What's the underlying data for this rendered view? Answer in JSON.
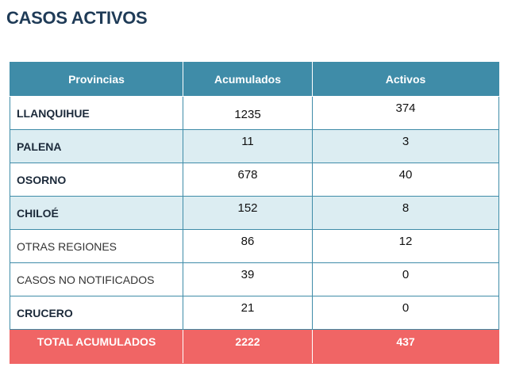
{
  "title": "CASOS ACTIVOS",
  "colors": {
    "header_bg": "#3f8ca8",
    "row_alt_bg": "#dcedf2",
    "total_bg": "#f06565",
    "title_color": "#1f3b57"
  },
  "table": {
    "headers": [
      "Provincias",
      "Acumulados",
      "Activos"
    ],
    "rows": [
      {
        "provincia": "LLANQUIHUE",
        "acumulados": "1235",
        "activos": "374"
      },
      {
        "provincia": "PALENA",
        "acumulados": "11",
        "activos": "3"
      },
      {
        "provincia": "OSORNO",
        "acumulados": "678",
        "activos": "40"
      },
      {
        "provincia": "CHILOÉ",
        "acumulados": "152",
        "activos": "8"
      },
      {
        "provincia": "OTRAS REGIONES",
        "acumulados": "86",
        "activos": "12"
      },
      {
        "provincia": "CASOS NO NOTIFICADOS",
        "acumulados": "39",
        "activos": "0"
      },
      {
        "provincia": "CRUCERO",
        "acumulados": "21",
        "activos": "0"
      }
    ],
    "total": {
      "label": "TOTAL ACUMULADOS",
      "acumulados": "2222",
      "activos": "437"
    }
  }
}
